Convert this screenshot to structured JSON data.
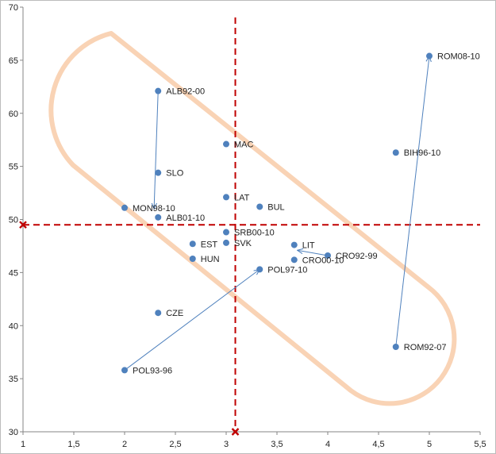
{
  "chart_data": {
    "type": "scatter",
    "title": "",
    "xlabel": "",
    "ylabel": "",
    "xlim": [
      1,
      5.5
    ],
    "ylim": [
      30,
      70
    ],
    "x_ticks": [
      {
        "value": 1,
        "label": "1"
      },
      {
        "value": 1.5,
        "label": "1,5"
      },
      {
        "value": 2,
        "label": "2"
      },
      {
        "value": 2.5,
        "label": "2,5"
      },
      {
        "value": 3,
        "label": "3"
      },
      {
        "value": 3.5,
        "label": "3,5"
      },
      {
        "value": 4,
        "label": "4"
      },
      {
        "value": 4.5,
        "label": "4,5"
      },
      {
        "value": 5,
        "label": "5"
      },
      {
        "value": 5.5,
        "label": "5,5"
      }
    ],
    "y_ticks": [
      {
        "value": 30,
        "label": "30"
      },
      {
        "value": 35,
        "label": "35"
      },
      {
        "value": 40,
        "label": "40"
      },
      {
        "value": 45,
        "label": "45"
      },
      {
        "value": 50,
        "label": "50"
      },
      {
        "value": 55,
        "label": "55"
      },
      {
        "value": 60,
        "label": "60"
      },
      {
        "value": 65,
        "label": "65"
      },
      {
        "value": 70,
        "label": "70"
      }
    ],
    "grid": false,
    "legend": "none",
    "points": [
      {
        "label": "ALB92-00",
        "x": 2.33,
        "y": 62.1
      },
      {
        "label": "SLO",
        "x": 2.33,
        "y": 54.4
      },
      {
        "label": "MON98-10",
        "x": 2.0,
        "y": 51.1
      },
      {
        "label": "ALB01-10",
        "x": 2.33,
        "y": 50.2
      },
      {
        "label": "MAC",
        "x": 3.0,
        "y": 57.1
      },
      {
        "label": "LAT",
        "x": 3.0,
        "y": 52.1
      },
      {
        "label": "BUL",
        "x": 3.33,
        "y": 51.2
      },
      {
        "label": "SRB00-10",
        "x": 3.0,
        "y": 48.8
      },
      {
        "label": "SVK",
        "x": 3.0,
        "y": 47.8
      },
      {
        "label": "EST",
        "x": 2.67,
        "y": 47.7
      },
      {
        "label": "HUN",
        "x": 2.67,
        "y": 46.3
      },
      {
        "label": "LIT",
        "x": 3.67,
        "y": 47.6
      },
      {
        "label": "CRO92-99",
        "x": 4.0,
        "y": 46.6
      },
      {
        "label": "CRO00-10",
        "x": 3.67,
        "y": 46.2
      },
      {
        "label": "POL97-10",
        "x": 3.33,
        "y": 45.3
      },
      {
        "label": "CZE",
        "x": 2.33,
        "y": 41.2
      },
      {
        "label": "POL93-96",
        "x": 2.0,
        "y": 35.8
      },
      {
        "label": "ROM92-07",
        "x": 4.67,
        "y": 38.0
      },
      {
        "label": "ROM08-10",
        "x": 5.0,
        "y": 65.4
      },
      {
        "label": "BIH96-10",
        "x": 4.67,
        "y": 56.3
      }
    ],
    "arrows": [
      {
        "from": [
          2.33,
          62.1
        ],
        "to": [
          2.29,
          51.0
        ]
      },
      {
        "from": [
          2.0,
          35.8
        ],
        "to": [
          3.33,
          45.3
        ]
      },
      {
        "from": [
          4.67,
          38.0
        ],
        "to": [
          5.0,
          65.4
        ]
      },
      {
        "from": [
          4.0,
          46.6
        ],
        "to": [
          3.7,
          47.1
        ]
      }
    ],
    "reference_lines": {
      "x": 3.09,
      "y": 49.5
    },
    "reference_markers": [
      {
        "x": 1.0,
        "y": 49.5
      },
      {
        "x": 3.09,
        "y": 30.0
      }
    ],
    "colors": {
      "point": "#4f81bd",
      "arrow": "#4f81bd",
      "reference": "#c00000",
      "highlight": "#f9d3b5",
      "axis": "#868686"
    }
  }
}
